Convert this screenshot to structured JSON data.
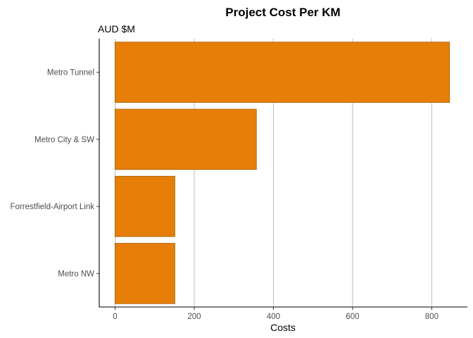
{
  "chart_data": {
    "type": "bar",
    "orientation": "horizontal",
    "title": "Project Cost Per KM",
    "subtitle": "AUD $M",
    "xlabel": "Costs",
    "ylabel": "",
    "categories": [
      "Metro Tunnel",
      "Metro City & SW",
      "Forrestfield-Airport Link",
      "Metro NW"
    ],
    "values": [
      845,
      357,
      151,
      151
    ],
    "xlim": [
      -40,
      890
    ],
    "xticks": [
      0,
      200,
      400,
      600,
      800
    ],
    "xtick_labels": [
      "0",
      "200",
      "400",
      "600",
      "800"
    ],
    "grid": "vertical major",
    "legend": "none",
    "bar_color": "#E67E08",
    "bar_border_color": "#A65A00"
  }
}
